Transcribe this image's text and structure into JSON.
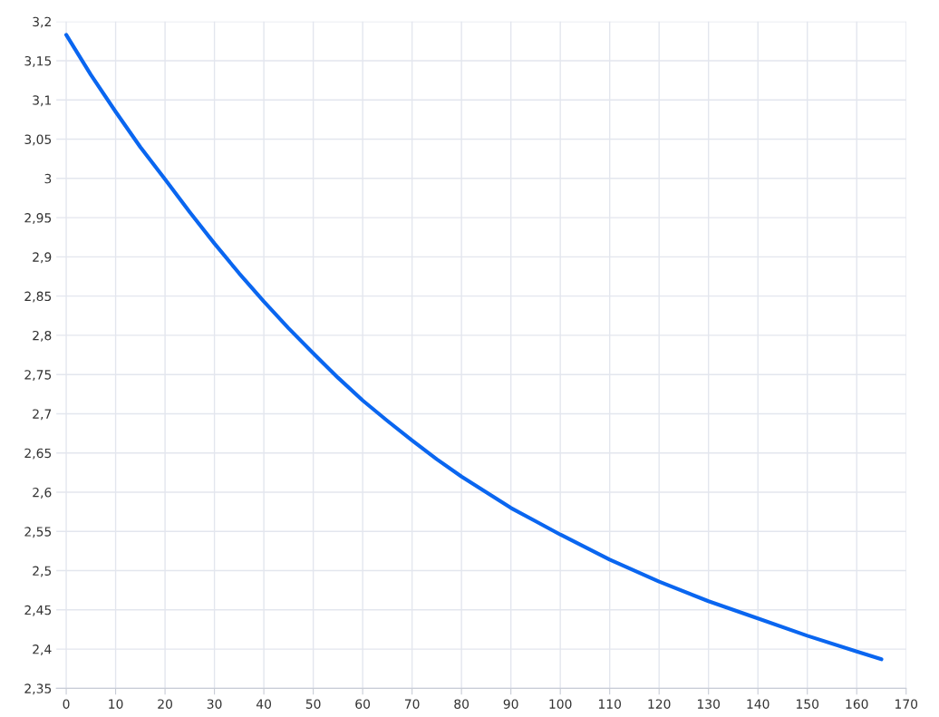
{
  "chart_data": {
    "type": "line",
    "x": [
      0,
      5,
      10,
      15,
      20,
      25,
      30,
      35,
      40,
      45,
      50,
      55,
      60,
      65,
      70,
      75,
      80,
      85,
      90,
      95,
      100,
      110,
      120,
      130,
      140,
      150,
      160,
      165
    ],
    "series": [
      {
        "color": "#0a66f0",
        "values": [
          3.183,
          3.132,
          3.085,
          3.04,
          2.999,
          2.957,
          2.917,
          2.879,
          2.843,
          2.809,
          2.777,
          2.746,
          2.717,
          2.691,
          2.666,
          2.642,
          2.62,
          2.6,
          2.58,
          2.563,
          2.546,
          2.514,
          2.486,
          2.461,
          2.439,
          2.417,
          2.397,
          2.387
        ]
      }
    ],
    "xlim": [
      -2,
      170
    ],
    "xticks": [
      0,
      10,
      20,
      30,
      40,
      50,
      60,
      70,
      80,
      90,
      100,
      110,
      120,
      130,
      140,
      150,
      160,
      170
    ],
    "ylim": [
      2.35,
      3.2
    ],
    "yticks": [
      {
        "value": 2.35,
        "label": "2,35"
      },
      {
        "value": 2.4,
        "label": "2,4"
      },
      {
        "value": 2.45,
        "label": "2,45"
      },
      {
        "value": 2.5,
        "label": "2,5"
      },
      {
        "value": 2.55,
        "label": "2,55"
      },
      {
        "value": 2.6,
        "label": "2,6"
      },
      {
        "value": 2.65,
        "label": "2,65"
      },
      {
        "value": 2.7,
        "label": "2,7"
      },
      {
        "value": 2.75,
        "label": "2,75"
      },
      {
        "value": 2.8,
        "label": "2,8"
      },
      {
        "value": 2.85,
        "label": "2,85"
      },
      {
        "value": 2.9,
        "label": "2,9"
      },
      {
        "value": 2.95,
        "label": "2,95"
      },
      {
        "value": 3,
        "label": "3"
      },
      {
        "value": 3.05,
        "label": "3,05"
      },
      {
        "value": 3.1,
        "label": "3,1"
      },
      {
        "value": 3.15,
        "label": "3,15"
      },
      {
        "value": 3.2,
        "label": "3,2"
      }
    ],
    "grid": true,
    "marker": "none",
    "line_style": "solid"
  }
}
